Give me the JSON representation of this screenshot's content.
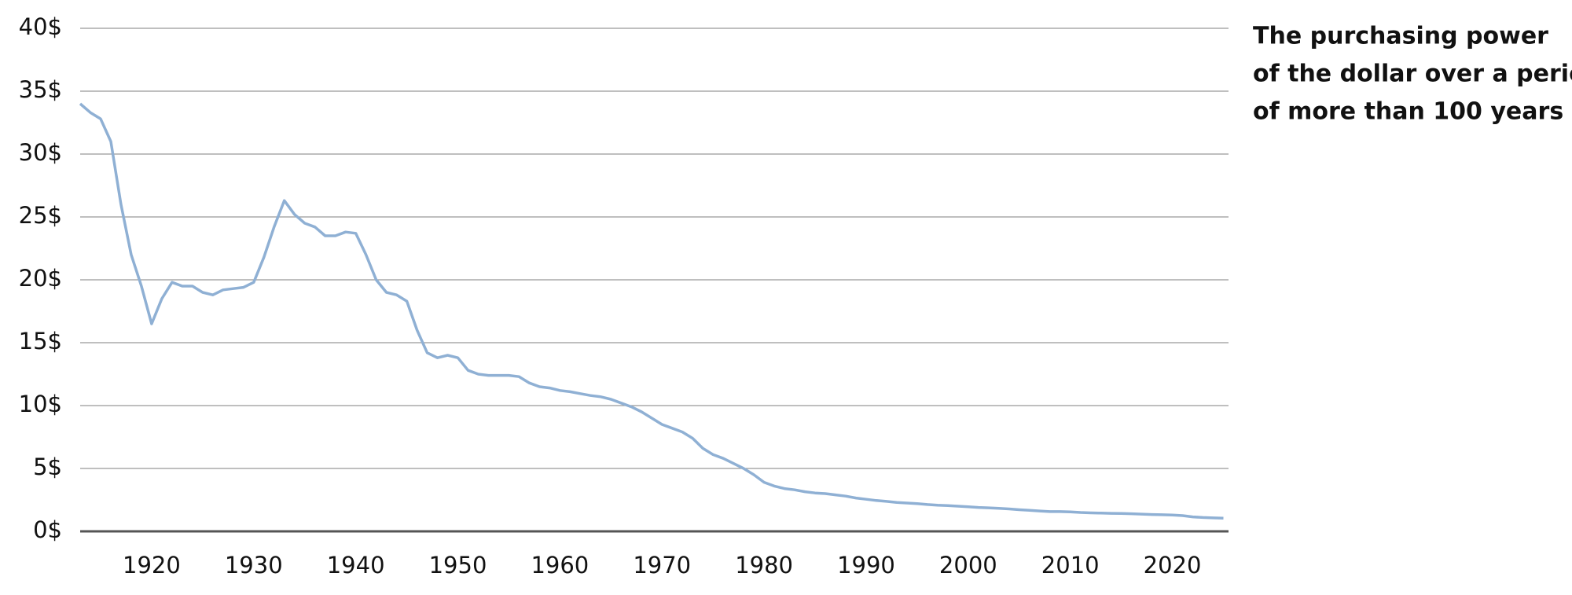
{
  "chart_data": {
    "type": "line",
    "title": [
      "The purchasing power",
      "of the dollar over a period",
      "of more than 100 years"
    ],
    "x": [
      1913,
      1914,
      1915,
      1916,
      1917,
      1918,
      1919,
      1920,
      1921,
      1922,
      1923,
      1924,
      1925,
      1926,
      1927,
      1928,
      1929,
      1930,
      1931,
      1932,
      1933,
      1934,
      1935,
      1936,
      1937,
      1938,
      1939,
      1940,
      1941,
      1942,
      1943,
      1944,
      1945,
      1946,
      1947,
      1948,
      1949,
      1950,
      1951,
      1952,
      1953,
      1954,
      1955,
      1956,
      1957,
      1958,
      1959,
      1960,
      1961,
      1962,
      1963,
      1964,
      1965,
      1966,
      1967,
      1968,
      1969,
      1970,
      1971,
      1972,
      1973,
      1974,
      1975,
      1976,
      1977,
      1978,
      1979,
      1980,
      1981,
      1982,
      1983,
      1984,
      1985,
      1986,
      1987,
      1988,
      1989,
      1990,
      1991,
      1992,
      1993,
      1994,
      1995,
      1996,
      1997,
      1998,
      1999,
      2000,
      2001,
      2002,
      2003,
      2004,
      2005,
      2006,
      2007,
      2008,
      2009,
      2010,
      2011,
      2012,
      2013,
      2014,
      2015,
      2016,
      2017,
      2018,
      2019,
      2020,
      2021,
      2022,
      2023,
      2024,
      2025
    ],
    "series": [
      {
        "color": "#8fb0d4",
        "values": [
          34,
          33.3,
          32.8,
          31,
          26,
          22,
          19.5,
          16.5,
          18.5,
          19.8,
          19.5,
          19.5,
          19,
          18.8,
          19.2,
          19.3,
          19.4,
          19.8,
          21.8,
          24.2,
          26.3,
          25.2,
          24.5,
          24.2,
          23.5,
          23.5,
          23.8,
          23.7,
          22,
          20,
          19,
          18.8,
          18.3,
          16,
          14.2,
          13.8,
          14,
          13.8,
          12.8,
          12.5,
          12.4,
          12.4,
          12.4,
          12.3,
          11.8,
          11.5,
          11.4,
          11.2,
          11.1,
          10.95,
          10.8,
          10.7,
          10.5,
          10.2,
          9.9,
          9.5,
          9,
          8.5,
          8.2,
          7.9,
          7.4,
          6.6,
          6.1,
          5.8,
          5.4,
          5,
          4.5,
          3.9,
          3.6,
          3.4,
          3.3,
          3.15,
          3.05,
          3,
          2.9,
          2.8,
          2.65,
          2.55,
          2.45,
          2.38,
          2.3,
          2.25,
          2.2,
          2.13,
          2.08,
          2.05,
          2,
          1.95,
          1.9,
          1.87,
          1.83,
          1.78,
          1.72,
          1.67,
          1.62,
          1.57,
          1.57,
          1.55,
          1.5,
          1.47,
          1.45,
          1.43,
          1.42,
          1.4,
          1.37,
          1.34,
          1.32,
          1.3,
          1.25,
          1.15,
          1.1,
          1.07,
          1.05
        ]
      }
    ],
    "xlim": [
      1913,
      2025.5
    ],
    "xticks": [
      1920,
      1930,
      1940,
      1950,
      1960,
      1970,
      1980,
      1990,
      2000,
      2010,
      2020
    ],
    "ylim": [
      0,
      40
    ],
    "yticks": [
      {
        "value": 0,
        "label": "0$"
      },
      {
        "value": 5,
        "label": "5$"
      },
      {
        "value": 10,
        "label": "10$"
      },
      {
        "value": 15,
        "label": "15$"
      },
      {
        "value": 20,
        "label": "20$"
      },
      {
        "value": 25,
        "label": "25$"
      },
      {
        "value": 30,
        "label": "30$"
      },
      {
        "value": 35,
        "label": "35$"
      },
      {
        "value": 40,
        "label": "40$"
      }
    ],
    "grid": true
  }
}
